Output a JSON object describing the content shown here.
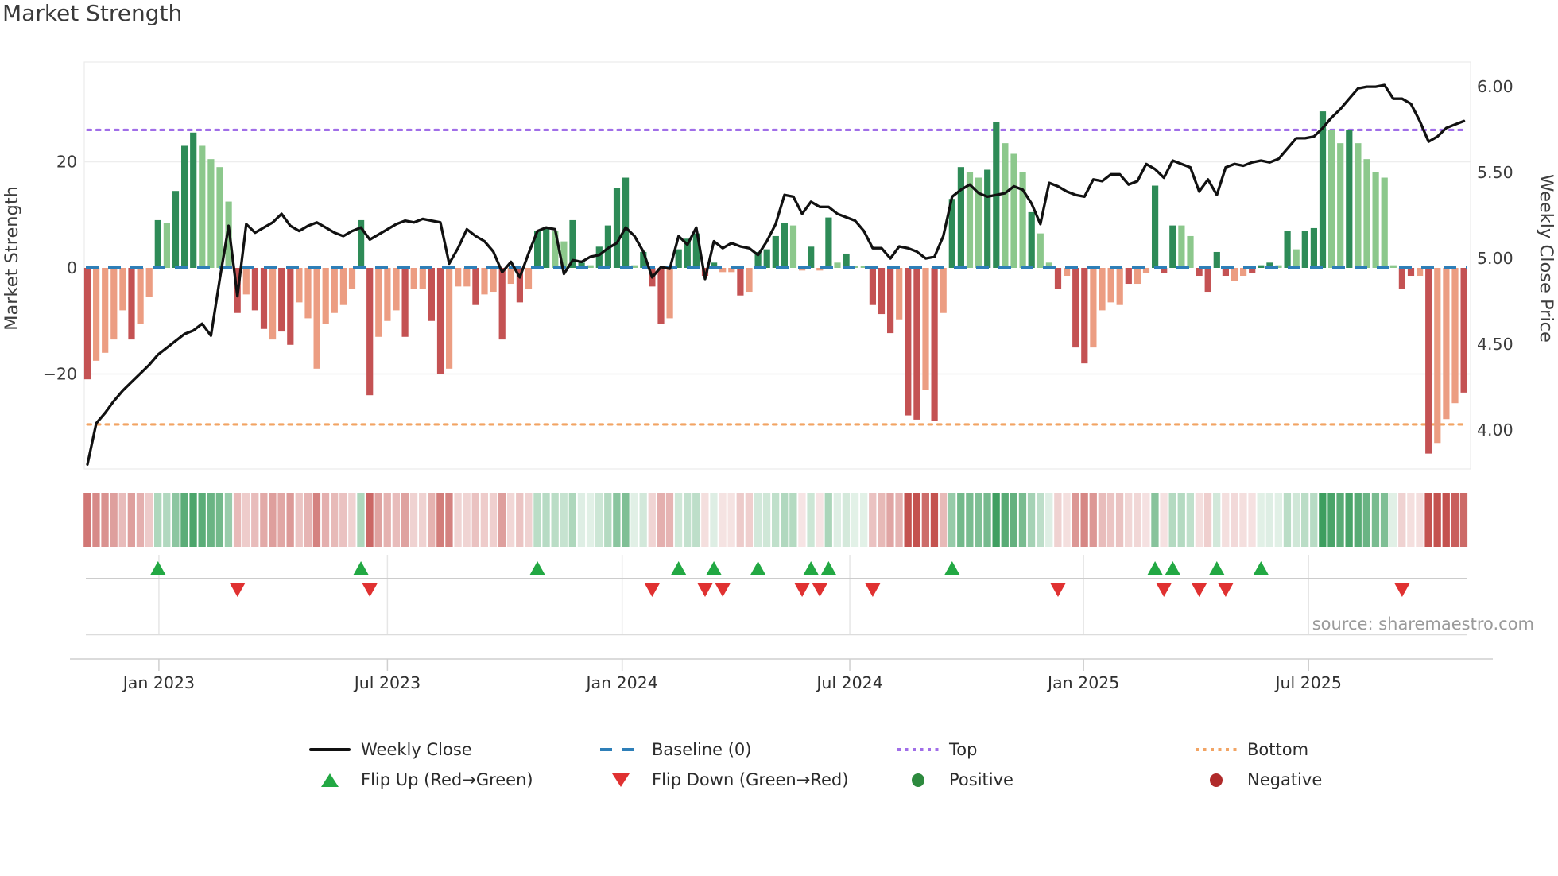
{
  "title": "Market Strength",
  "source": "source: sharemaestro.com",
  "axes": {
    "left_label": "Market Strength",
    "right_label": "Weekly Close Price",
    "left_tick_labels": [
      "20",
      "0",
      "−20"
    ],
    "left_tick_values": [
      20,
      0,
      -20
    ],
    "right_tick_labels": [
      "6.00",
      "5.50",
      "5.00",
      "4.50",
      "4.00"
    ],
    "right_tick_values": [
      6.0,
      5.5,
      5.0,
      4.5,
      4.0
    ],
    "x_tick_labels": [
      "Jan 2023",
      "Jul 2023",
      "Jan 2024",
      "Jul 2024",
      "Jan 2025",
      "Jul 2025"
    ]
  },
  "colors": {
    "bar_positive_dark": "#2e8b57",
    "bar_positive_light": "#8cc88c",
    "bar_negative_dark": "#c45253",
    "bar_negative_light": "#ec9d82",
    "weekly_close_line": "#111111",
    "baseline": "#2e7fb8",
    "top_line": "#a06ee8",
    "bottom_line": "#f2a464",
    "flip_up": "#22a843",
    "flip_down": "#e03131",
    "heatmap_green": "#3d9e5f",
    "heatmap_red": "#c4524f"
  },
  "legend": {
    "items": [
      {
        "label": "Weekly Close",
        "marker": "black-line"
      },
      {
        "label": "Baseline (0)",
        "marker": "blue-dashed-line"
      },
      {
        "label": "Top",
        "marker": "purple-dotted-line"
      },
      {
        "label": "Bottom",
        "marker": "orange-dotted-line"
      },
      {
        "label": "Flip Up (Red→Green)",
        "marker": "green-up-triangle"
      },
      {
        "label": "Flip Down (Green→Red)",
        "marker": "red-down-triangle"
      },
      {
        "label": "Positive",
        "marker": "green-circle"
      },
      {
        "label": "Negative",
        "marker": "dark-red-circle"
      }
    ]
  },
  "chart_data": {
    "type": "combo-bar-line",
    "title": "Market Strength",
    "x_axis": {
      "kind": "weekly-time",
      "tick_labels": [
        "Jan 2023",
        "Jul 2023",
        "Jan 2024",
        "Jul 2024",
        "Jan 2025",
        "Jul 2025"
      ],
      "n_points": 157,
      "range_note": "weekly bars from ~Nov 2022 to ~Nov 2025"
    },
    "left_axis": {
      "label": "Market Strength",
      "ticks": [
        -20,
        0,
        20
      ]
    },
    "right_axis": {
      "label": "Weekly Close Price",
      "ticks": [
        4.0,
        4.5,
        5.0,
        5.5,
        6.0
      ]
    },
    "baseline": 0,
    "top_line_value": 26,
    "bottom_line_value": -29.5,
    "grid": "horizontal at -20 and 20",
    "legend_position": "bottom",
    "strength_bars": [
      -21,
      -17.5,
      -16,
      -13.5,
      -8,
      -13.5,
      -10.5,
      -5.5,
      9,
      8.5,
      14.5,
      23,
      25.5,
      23,
      20.5,
      19,
      12.5,
      -8.5,
      -5,
      -8,
      -11.5,
      -13.5,
      -12,
      -14.5,
      -6.5,
      -9.5,
      -19,
      -10.5,
      -8.5,
      -7,
      -4,
      9,
      -24,
      -13,
      -10,
      -8,
      -13,
      -4,
      -4,
      -10,
      -20,
      -19,
      -3.5,
      -3.5,
      -7,
      -5,
      -4.5,
      -13.5,
      -3,
      -6.5,
      -4,
      7,
      7.5,
      7,
      5,
      9,
      1,
      0.5,
      4,
      8,
      15,
      17,
      0.5,
      3,
      -3.5,
      -10.5,
      -9.5,
      3.5,
      5.5,
      6.5,
      -1.5,
      1,
      -0.8,
      -0.8,
      -5.2,
      -4.5,
      3,
      3.5,
      6,
      8.5,
      8,
      -0.5,
      4,
      -0.5,
      9.5,
      1,
      2.7,
      0.3,
      0.3,
      -7,
      -8.7,
      -12.3,
      -9.7,
      -27.8,
      -28.6,
      -23,
      -28.9,
      -8.5,
      13,
      19,
      18,
      17,
      18.5,
      27.5,
      23.5,
      21.5,
      18,
      10.5,
      6.5,
      1,
      -4,
      -1.5,
      -15,
      -18,
      -15,
      -8,
      -6.5,
      -7,
      -3,
      -3,
      -1,
      15.5,
      -1,
      8,
      8,
      6,
      -1.5,
      -4.5,
      3,
      -1.5,
      -2.5,
      -1.5,
      -1,
      0.5,
      1,
      0.5,
      7,
      3.5,
      7,
      7.5,
      29.5,
      26,
      23.5,
      26,
      23.5,
      20.5,
      18,
      17,
      0.5,
      -4,
      -1.5,
      -1.5,
      -35,
      -33,
      -28.5,
      -25.5,
      -23.5
    ],
    "bar_dark_shade": [
      1,
      0,
      0,
      0,
      0,
      1,
      0,
      0,
      1,
      0,
      1,
      1,
      1,
      0,
      0,
      0,
      0,
      1,
      0,
      1,
      1,
      0,
      1,
      1,
      0,
      0,
      0,
      0,
      0,
      0,
      0,
      1,
      1,
      0,
      0,
      0,
      1,
      0,
      0,
      1,
      1,
      0,
      0,
      0,
      1,
      0,
      0,
      1,
      0,
      1,
      0,
      1,
      1,
      0,
      0,
      1,
      1,
      0,
      1,
      1,
      1,
      1,
      0,
      1,
      1,
      1,
      0,
      1,
      1,
      1,
      1,
      1,
      0,
      0,
      1,
      0,
      1,
      1,
      1,
      1,
      0,
      0,
      1,
      0,
      1,
      0,
      1,
      0,
      0,
      1,
      1,
      1,
      0,
      1,
      1,
      0,
      1,
      0,
      1,
      1,
      0,
      0,
      1,
      1,
      0,
      0,
      0,
      1,
      0,
      0,
      1,
      0,
      1,
      1,
      0,
      0,
      0,
      0,
      1,
      0,
      0,
      1,
      1,
      1,
      0,
      0,
      1,
      1,
      1,
      1,
      0,
      0,
      1,
      1,
      1,
      0,
      1,
      0,
      1,
      1,
      1,
      0,
      0,
      1,
      0,
      0,
      0,
      0,
      0,
      1,
      1,
      0,
      1,
      0,
      0,
      0,
      1
    ],
    "weekly_close": [
      3.8,
      4.04,
      4.1,
      4.17,
      4.23,
      4.28,
      4.33,
      4.38,
      4.44,
      4.48,
      4.52,
      4.56,
      4.58,
      4.62,
      4.55,
      4.88,
      5.19,
      4.78,
      5.2,
      5.15,
      5.18,
      5.21,
      5.26,
      5.19,
      5.16,
      5.19,
      5.21,
      5.18,
      5.15,
      5.13,
      5.16,
      5.18,
      5.11,
      5.14,
      5.17,
      5.2,
      5.22,
      5.21,
      5.23,
      5.22,
      5.21,
      4.97,
      5.06,
      5.17,
      5.13,
      5.1,
      5.04,
      4.92,
      4.98,
      4.89,
      5.03,
      5.16,
      5.18,
      5.17,
      4.91,
      4.99,
      4.98,
      5.01,
      5.02,
      5.06,
      5.09,
      5.18,
      5.13,
      5.04,
      4.89,
      4.95,
      4.94,
      5.13,
      5.08,
      5.18,
      4.88,
      5.1,
      5.06,
      5.09,
      5.07,
      5.06,
      5.02,
      5.1,
      5.2,
      5.37,
      5.36,
      5.26,
      5.33,
      5.3,
      5.3,
      5.26,
      5.24,
      5.22,
      5.16,
      5.06,
      5.06,
      5.0,
      5.07,
      5.06,
      5.04,
      5.0,
      5.01,
      5.13,
      5.36,
      5.4,
      5.43,
      5.38,
      5.36,
      5.37,
      5.38,
      5.42,
      5.4,
      5.32,
      5.2,
      5.44,
      5.42,
      5.39,
      5.37,
      5.36,
      5.46,
      5.45,
      5.49,
      5.49,
      5.43,
      5.45,
      5.55,
      5.52,
      5.47,
      5.57,
      5.55,
      5.53,
      5.39,
      5.46,
      5.37,
      5.53,
      5.55,
      5.54,
      5.56,
      5.57,
      5.56,
      5.58,
      5.64,
      5.7,
      5.7,
      5.71,
      5.76,
      5.82,
      5.87,
      5.93,
      5.99,
      6.0,
      6.0,
      6.01,
      5.93,
      5.93,
      5.9,
      5.8,
      5.68,
      5.71,
      5.76,
      5.78,
      5.8
    ],
    "flip_markers_note": "up-triangle at weeks where bar flips red-to-green; down-triangle where it flips green-to-red (derived from strength_bars signs)",
    "heatmap_strip": "one cell per week, red/green intensity proportional to strength bar magnitude"
  }
}
